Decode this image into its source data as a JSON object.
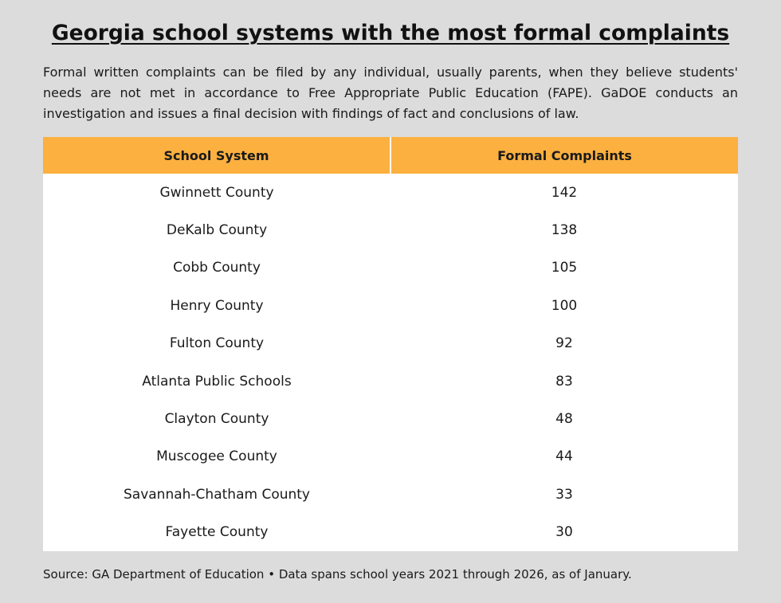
{
  "title": "Georgia school systems with the most formal complaints",
  "intro": "Formal written complaints can be filed by any individual, usually parents, when they believe students' needs are not met in accordance to Free Appropriate Public Education (FAPE). GaDOE conducts an investigation and issues a final decision with findings of fact and conclusions of law.",
  "footer": "Source: GA Department of Education • Data spans school years 2021 through 2026, as of January.",
  "colors": {
    "header_bg": "#fbb040",
    "page_bg": "#dcdcdc",
    "table_bg": "#ffffff"
  },
  "chart_data": {
    "type": "table",
    "columns": [
      "School System",
      "Formal Complaints"
    ],
    "rows": [
      [
        "Gwinnett County",
        "142"
      ],
      [
        "DeKalb County",
        "138"
      ],
      [
        "Cobb County",
        "105"
      ],
      [
        "Henry County",
        "100"
      ],
      [
        "Fulton County",
        "92"
      ],
      [
        "Atlanta Public Schools",
        "83"
      ],
      [
        "Clayton County",
        "48"
      ],
      [
        "Muscogee County",
        "44"
      ],
      [
        "Savannah-Chatham County",
        "33"
      ],
      [
        "Fayette County",
        "30"
      ]
    ]
  }
}
